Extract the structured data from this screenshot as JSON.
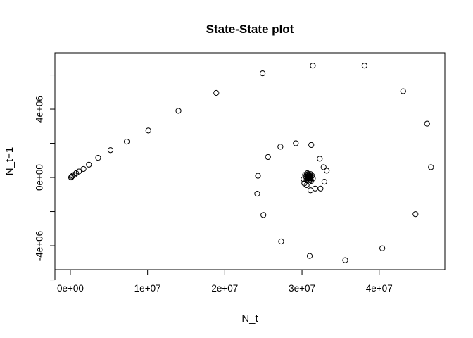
{
  "chart_data": {
    "type": "scatter",
    "title": "State-State plot",
    "xlabel": "N_t",
    "ylabel": "N_t+1",
    "xlim": [
      -2000000,
      48500000
    ],
    "ylim": [
      -5400000,
      7300000
    ],
    "x_ticks": [
      {
        "value": 0,
        "label": "0e+00"
      },
      {
        "value": 10000000,
        "label": "1e+07"
      },
      {
        "value": 20000000,
        "label": "2e+07"
      },
      {
        "value": 30000000,
        "label": "3e+07"
      },
      {
        "value": 40000000,
        "label": "4e+07"
      }
    ],
    "y_ticks": [
      {
        "value": -6000000,
        "label": ""
      },
      {
        "value": -4000000,
        "label": "-4e+06"
      },
      {
        "value": -2000000,
        "label": ""
      },
      {
        "value": 0,
        "label": "0e+00"
      },
      {
        "value": 2000000,
        "label": ""
      },
      {
        "value": 4000000,
        "label": "4e+06"
      },
      {
        "value": 6000000,
        "label": ""
      }
    ],
    "grid": false,
    "legend": "none",
    "points": [
      [
        100000,
        0
      ],
      [
        180000,
        50000
      ],
      [
        300000,
        100000
      ],
      [
        500000,
        150000
      ],
      [
        750000,
        250000
      ],
      [
        1100000,
        350000
      ],
      [
        1700000,
        500000
      ],
      [
        2400000,
        750000
      ],
      [
        3600000,
        1150000
      ],
      [
        5200000,
        1600000
      ],
      [
        7300000,
        2100000
      ],
      [
        10100000,
        2750000
      ],
      [
        14000000,
        3900000
      ],
      [
        18900000,
        4950000
      ],
      [
        24900000,
        6100000
      ],
      [
        31400000,
        6550000
      ],
      [
        38100000,
        6550000
      ],
      [
        43100000,
        5050000
      ],
      [
        46200000,
        3150000
      ],
      [
        46700000,
        600000
      ],
      [
        44700000,
        -2150000
      ],
      [
        40400000,
        -4150000
      ],
      [
        35600000,
        -4850000
      ],
      [
        31000000,
        -4600000
      ],
      [
        27300000,
        -3750000
      ],
      [
        25000000,
        -2200000
      ],
      [
        24200000,
        -950000
      ],
      [
        24300000,
        100000
      ],
      [
        25600000,
        1200000
      ],
      [
        27200000,
        1800000
      ],
      [
        29200000,
        2000000
      ],
      [
        31200000,
        1900000
      ],
      [
        32300000,
        1100000
      ],
      [
        32800000,
        600000
      ],
      [
        33200000,
        400000
      ],
      [
        32900000,
        -250000
      ],
      [
        32400000,
        -650000
      ],
      [
        31700000,
        -650000
      ],
      [
        31100000,
        -750000
      ],
      [
        30600000,
        -450000
      ],
      [
        30300000,
        -350000
      ],
      [
        30200000,
        -100000
      ],
      [
        30400000,
        150000
      ],
      [
        30700000,
        250000
      ],
      [
        31100000,
        200000
      ],
      [
        31300000,
        100000
      ],
      [
        31400000,
        -50000
      ],
      [
        31200000,
        -200000
      ],
      [
        30900000,
        -250000
      ],
      [
        30600000,
        -150000
      ],
      [
        30500000,
        50000
      ],
      [
        30600000,
        150000
      ],
      [
        30800000,
        200000
      ],
      [
        31000000,
        150000
      ],
      [
        31100000,
        50000
      ],
      [
        31100000,
        -50000
      ],
      [
        31000000,
        -150000
      ],
      [
        30800000,
        -150000
      ],
      [
        30700000,
        -50000
      ],
      [
        30700000,
        50000
      ],
      [
        30800000,
        100000
      ],
      [
        30900000,
        100000
      ],
      [
        31000000,
        0
      ],
      [
        30950000,
        -50000
      ],
      [
        30850000,
        -50000
      ],
      [
        30850000,
        20000
      ],
      [
        30900000,
        30000
      ]
    ]
  }
}
